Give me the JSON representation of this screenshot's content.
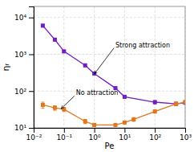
{
  "chart_data": {
    "type": "line",
    "xlabel": "Pe",
    "ylabel": "ηᵣ",
    "log": true,
    "grid": true,
    "xlim": [
      0.01,
      1000
    ],
    "ylim": [
      10,
      19952.623149688792
    ],
    "xticks": [
      {
        "value": 0.01,
        "label": "10⁻²"
      },
      {
        "value": 0.1,
        "label": "10⁻¹"
      },
      {
        "value": 1,
        "label": "10⁰"
      },
      {
        "value": 10,
        "label": "10¹"
      },
      {
        "value": 100,
        "label": "10²"
      },
      {
        "value": 1000,
        "label": "10³"
      }
    ],
    "yticks": [
      {
        "value": 10,
        "label": "10¹"
      },
      {
        "value": 100,
        "label": "10²"
      },
      {
        "value": 1000,
        "label": "10³"
      },
      {
        "value": 10000,
        "label": "10⁴"
      }
    ],
    "marker": "square",
    "line_style": "solid",
    "series": [
      {
        "color": "#7020c0",
        "x": [
          0.02,
          0.05,
          0.1,
          0.5,
          1.0,
          5.0,
          10.0,
          100.0,
          500.0,
          1000.0
        ],
        "values": [
          6000,
          2500,
          1200,
          500,
          300,
          120,
          70,
          50,
          45,
          48
        ],
        "error_low": [
          500,
          200,
          100,
          40,
          25,
          10,
          6,
          5,
          4,
          4
        ],
        "error_high": [
          500,
          200,
          100,
          40,
          25,
          10,
          6,
          5,
          4,
          4
        ]
      },
      {
        "color": "#e07820",
        "x": [
          0.02,
          0.05,
          0.1,
          0.5,
          1.0,
          5.0,
          10.0,
          20.0,
          100.0,
          500.0,
          1000.0
        ],
        "values": [
          42,
          35,
          32,
          15,
          12,
          12,
          14,
          17,
          28,
          45,
          50
        ],
        "error_low": [
          8,
          5,
          4,
          2,
          1,
          1,
          1,
          2,
          3,
          5,
          5
        ],
        "error_high": [
          8,
          5,
          4,
          2,
          1,
          1,
          1,
          2,
          3,
          5,
          5
        ]
      }
    ],
    "annotations": [
      {
        "text": "Strong attraction",
        "x": 5.0,
        "y": 1800,
        "arrow_x": 1.0,
        "arrow_y": 290
      },
      {
        "text": "No attraction",
        "x": 0.25,
        "y": 90,
        "arrow_x": 0.08,
        "arrow_y": 33
      }
    ]
  }
}
